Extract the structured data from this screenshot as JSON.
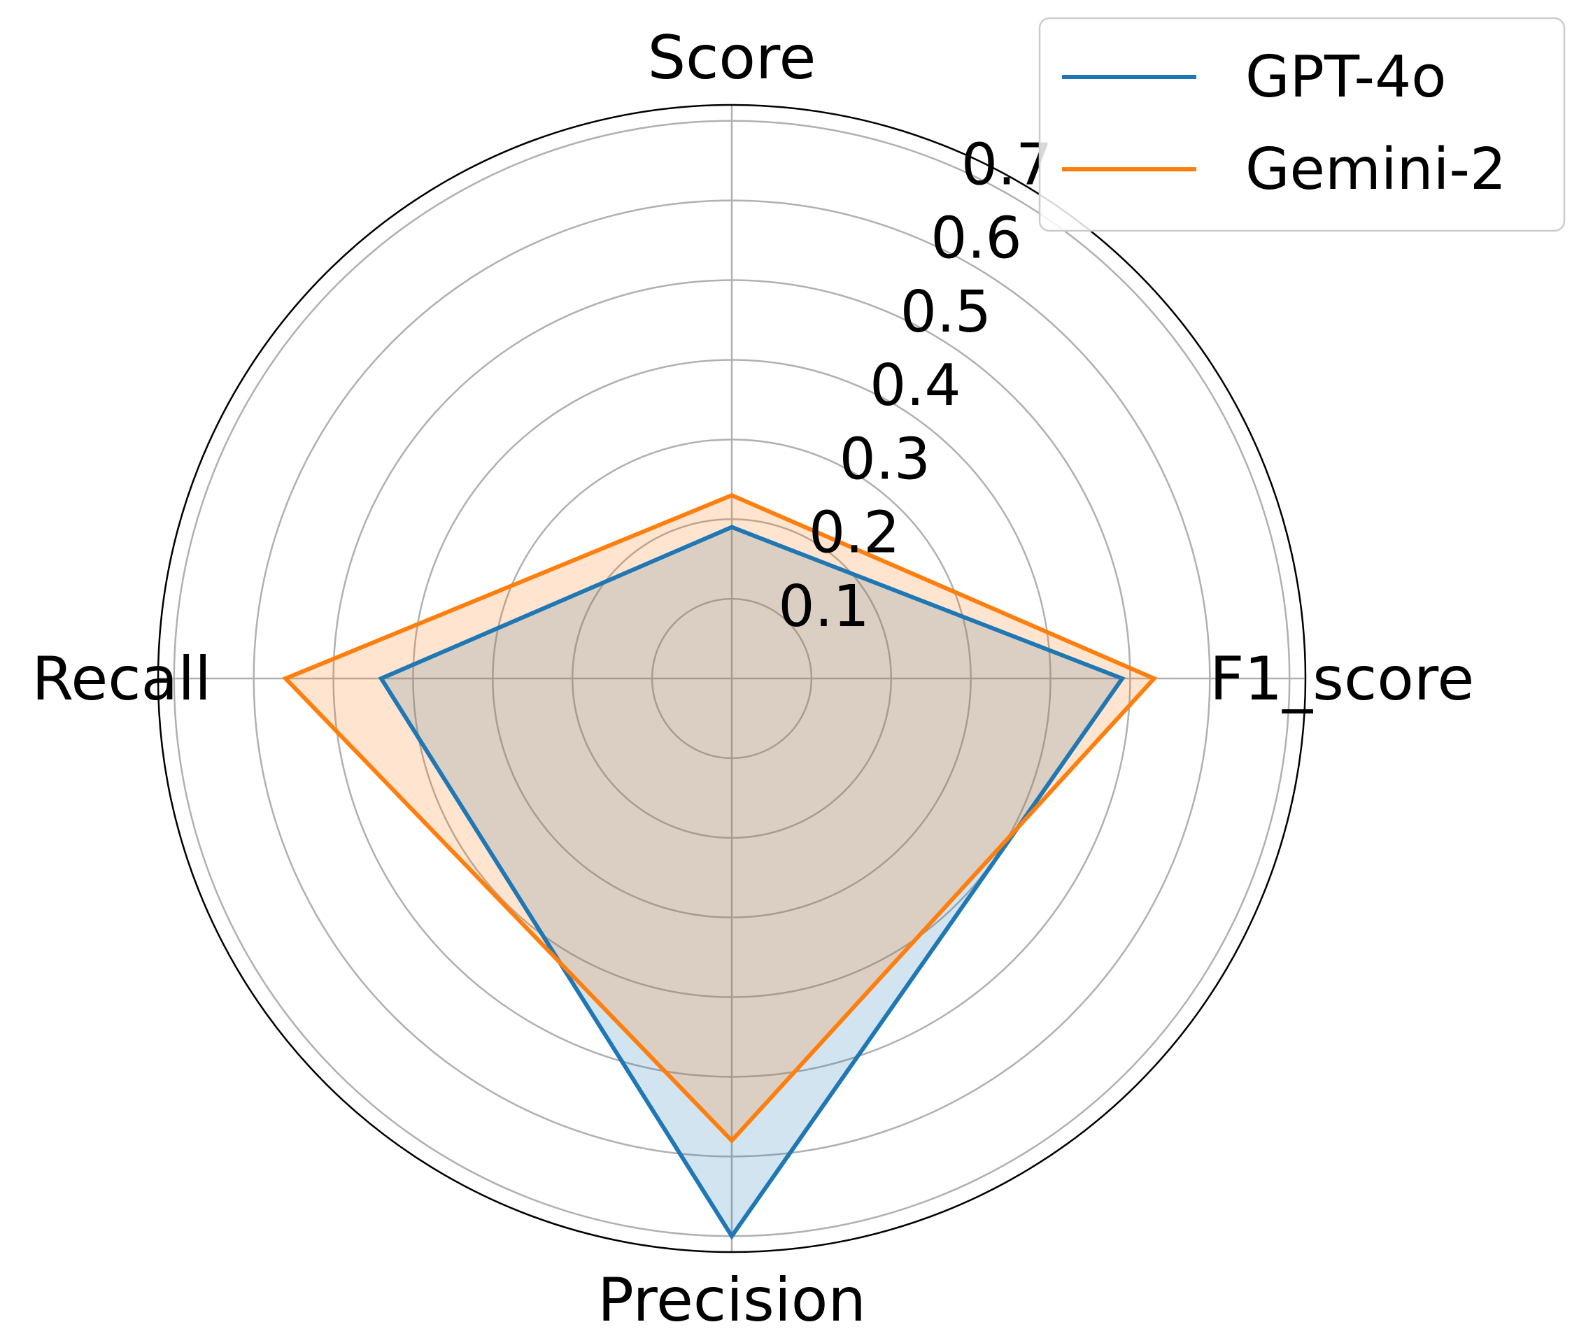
{
  "chart_data": {
    "type": "radar",
    "axes": [
      "Score",
      "F1_score",
      "Precision",
      "Recall"
    ],
    "radial_ticks": [
      "0.1",
      "0.2",
      "0.3",
      "0.4",
      "0.5",
      "0.6",
      "0.7"
    ],
    "rlim": [
      0,
      0.72
    ],
    "grid": true,
    "legend_position": "top-right",
    "series": [
      {
        "name": "GPT-4o",
        "color": "#1f77b4",
        "values": [
          0.19,
          0.49,
          0.7,
          0.44
        ]
      },
      {
        "name": "Gemini-2",
        "color": "#ff7f0e",
        "values": [
          0.23,
          0.53,
          0.58,
          0.56
        ]
      }
    ]
  }
}
